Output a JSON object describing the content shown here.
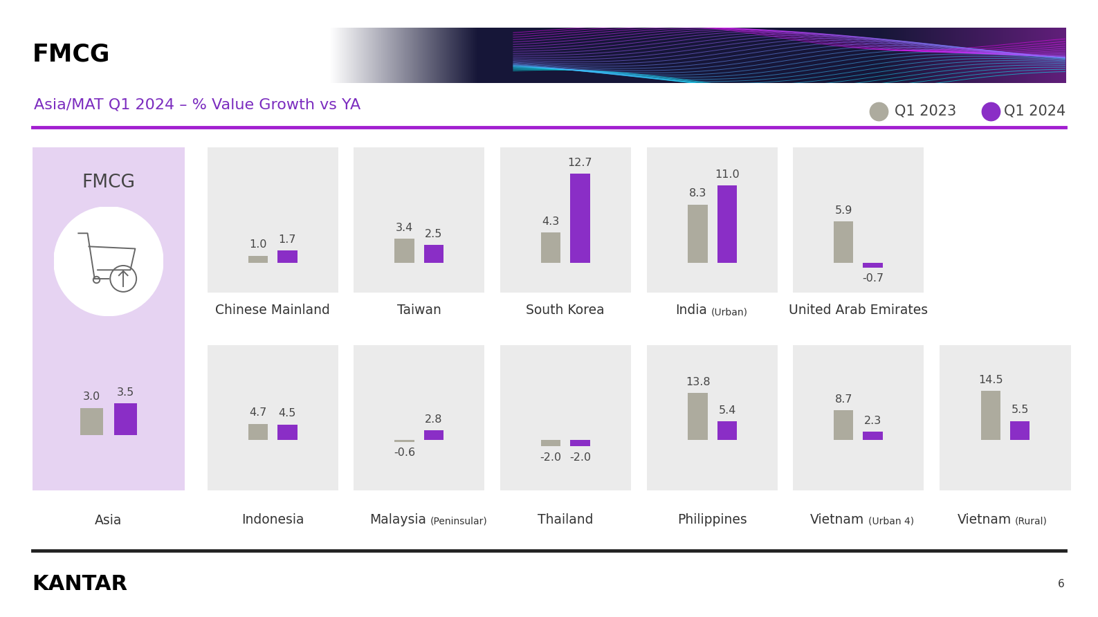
{
  "title": "FMCG",
  "subtitle": "Asia/MAT Q1 2024 – % Value Growth vs YA",
  "brand": "KANTAR",
  "page": 6,
  "chart_data": [
    {
      "type": "bar",
      "title": "Asia",
      "annotation": "FMCG",
      "categories": [
        null
      ],
      "series": [
        {
          "name": "Q1 2023",
          "color": "#adab9e",
          "values": [
            3.0
          ]
        },
        {
          "name": "Q1 2024",
          "color": "#8a2ec6",
          "values": [
            3.5
          ]
        }
      ],
      "ylim": [
        -6,
        31.5
      ],
      "data_labels": true,
      "tick_labels": false
    },
    {
      "type": "bar",
      "title": "Chinese Mainland",
      "categories": [
        null
      ],
      "series": [
        {
          "name": "Q1 2023",
          "color": "#adab9e",
          "values": [
            1.0
          ]
        },
        {
          "name": "Q1 2024",
          "color": "#8a2ec6",
          "values": [
            1.7
          ]
        }
      ],
      "ylim": [
        -4.3,
        16.5
      ],
      "data_labels": true,
      "tick_labels": false
    },
    {
      "type": "bar",
      "title": "Taiwan",
      "categories": [
        null
      ],
      "series": [
        {
          "name": "Q1 2023",
          "color": "#adab9e",
          "values": [
            3.4
          ]
        },
        {
          "name": "Q1 2024",
          "color": "#8a2ec6",
          "values": [
            2.5
          ]
        }
      ],
      "ylim": [
        -4.3,
        16.5
      ],
      "data_labels": true,
      "tick_labels": false
    },
    {
      "type": "bar",
      "title": "South Korea",
      "categories": [
        null
      ],
      "series": [
        {
          "name": "Q1 2023",
          "color": "#adab9e",
          "values": [
            4.3
          ]
        },
        {
          "name": "Q1 2024",
          "color": "#8a2ec6",
          "values": [
            12.7
          ]
        }
      ],
      "ylim": [
        -4.3,
        16.5
      ],
      "data_labels": true,
      "tick_labels": false
    },
    {
      "type": "bar",
      "title": "India",
      "subtitle": "(Urban)",
      "categories": [
        null
      ],
      "series": [
        {
          "name": "Q1 2023",
          "color": "#adab9e",
          "values": [
            8.3
          ]
        },
        {
          "name": "Q1 2024",
          "color": "#8a2ec6",
          "values": [
            11.0
          ]
        }
      ],
      "ylim": [
        -4.3,
        16.5
      ],
      "data_labels": true,
      "tick_labels": false
    },
    {
      "type": "bar",
      "title": "United Arab Emirates",
      "categories": [
        null
      ],
      "series": [
        {
          "name": "Q1 2023",
          "color": "#adab9e",
          "values": [
            5.9
          ]
        },
        {
          "name": "Q1 2024",
          "color": "#8a2ec6",
          "values": [
            -0.7
          ]
        }
      ],
      "ylim": [
        -4.3,
        16.5
      ],
      "data_labels": true,
      "tick_labels": false
    },
    {
      "type": "bar",
      "title": "Indonesia",
      "categories": [
        null
      ],
      "series": [
        {
          "name": "Q1 2023",
          "color": "#adab9e",
          "values": [
            4.7
          ]
        },
        {
          "name": "Q1 2024",
          "color": "#8a2ec6",
          "values": [
            4.5
          ]
        }
      ],
      "ylim": [
        -15,
        28
      ],
      "data_labels": true,
      "tick_labels": false
    },
    {
      "type": "bar",
      "title": "Malaysia",
      "subtitle": "(Peninsular)",
      "categories": [
        null
      ],
      "series": [
        {
          "name": "Q1 2023",
          "color": "#adab9e",
          "values": [
            -0.6
          ]
        },
        {
          "name": "Q1 2024",
          "color": "#8a2ec6",
          "values": [
            2.8
          ]
        }
      ],
      "ylim": [
        -15,
        28
      ],
      "data_labels": true,
      "tick_labels": false
    },
    {
      "type": "bar",
      "title": "Thailand",
      "categories": [
        null
      ],
      "series": [
        {
          "name": "Q1 2023",
          "color": "#adab9e",
          "values": [
            -2.0
          ]
        },
        {
          "name": "Q1 2024",
          "color": "#8a2ec6",
          "values": [
            -2.0
          ]
        }
      ],
      "ylim": [
        -15,
        28
      ],
      "data_labels": true,
      "tick_labels": false
    },
    {
      "type": "bar",
      "title": "Philippines",
      "categories": [
        null
      ],
      "series": [
        {
          "name": "Q1 2023",
          "color": "#adab9e",
          "values": [
            13.8
          ]
        },
        {
          "name": "Q1 2024",
          "color": "#8a2ec6",
          "values": [
            5.4
          ]
        }
      ],
      "ylim": [
        -15,
        28
      ],
      "data_labels": true,
      "tick_labels": false
    },
    {
      "type": "bar",
      "title": "Vietnam",
      "subtitle": "(Urban 4)",
      "categories": [
        null
      ],
      "series": [
        {
          "name": "Q1 2023",
          "color": "#adab9e",
          "values": [
            8.7
          ]
        },
        {
          "name": "Q1 2024",
          "color": "#8a2ec6",
          "values": [
            2.3
          ]
        }
      ],
      "ylim": [
        -15,
        28
      ],
      "data_labels": true,
      "tick_labels": false
    },
    {
      "type": "bar",
      "title": "Vietnam",
      "subtitle": "(Rural)",
      "categories": [
        null
      ],
      "series": [
        {
          "name": "Q1 2023",
          "color": "#adab9e",
          "values": [
            14.5
          ]
        },
        {
          "name": "Q1 2024",
          "color": "#8a2ec6",
          "values": [
            5.5
          ]
        }
      ],
      "ylim": [
        -15,
        28
      ],
      "data_labels": true,
      "tick_labels": false
    }
  ]
}
